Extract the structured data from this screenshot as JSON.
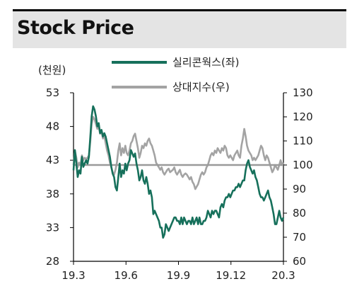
{
  "header": {
    "title": "Stock Price"
  },
  "colors": {
    "company": "#16705b",
    "relative": "#a3a3a3",
    "baseline": "#9a9a9a"
  },
  "chart_data": {
    "type": "line",
    "left_axis_unit": "(천원)",
    "x_tick_labels": [
      "19.3",
      "19.6",
      "19.9",
      "19.12",
      "20.3"
    ],
    "left_axis": {
      "ticks": [
        28,
        33,
        38,
        43,
        48,
        53
      ],
      "range": [
        28,
        53
      ]
    },
    "right_axis": {
      "ticks": [
        60,
        70,
        80,
        90,
        100,
        110,
        120,
        130
      ],
      "range": [
        60,
        130
      ]
    },
    "reference_line": {
      "axis": "right",
      "value": 100
    },
    "legend": [
      {
        "name": "실리콘웍스(좌)",
        "series": "company"
      },
      {
        "name": "상대지수(우)",
        "series": "relative"
      }
    ],
    "series": [
      {
        "name": "실리콘웍스(좌)",
        "key": "company",
        "axis": "left",
        "x": [
          0,
          2,
          4,
          6,
          8,
          10,
          12,
          14,
          16,
          18,
          20,
          22,
          24,
          26,
          28,
          30,
          32,
          34,
          36,
          38,
          40,
          42,
          44,
          46,
          48,
          50,
          52,
          54,
          56,
          58,
          60,
          62,
          64,
          66,
          68,
          70,
          72,
          74,
          76,
          78,
          80,
          82,
          84,
          86,
          88,
          90,
          92,
          94,
          96,
          98,
          100,
          102,
          104,
          106,
          108,
          110,
          112,
          114,
          116,
          118,
          120,
          122,
          124,
          126,
          128,
          130,
          132,
          134,
          136,
          138,
          140,
          142,
          144,
          146,
          148,
          150,
          152,
          154,
          156,
          158,
          160,
          162,
          164,
          166,
          168,
          170,
          172,
          174,
          176,
          178,
          180,
          182,
          184,
          186,
          188,
          190,
          192,
          194,
          196,
          198,
          200,
          202,
          204,
          206,
          208,
          210,
          212,
          214,
          216,
          218,
          220,
          222,
          224,
          226,
          228,
          230,
          232,
          234,
          236,
          238,
          240,
          242,
          244,
          246,
          248,
          250,
          252,
          254,
          256,
          258,
          260,
          262,
          264,
          266,
          268,
          270,
          272,
          274,
          276,
          278,
          280,
          282,
          284,
          286,
          288,
          290,
          292,
          294,
          296,
          298,
          300
        ],
        "values": [
          41.5,
          44.5,
          42.5,
          40.5,
          41.5,
          41.0,
          43.5,
          42.0,
          42.5,
          43.0,
          42.5,
          43.5,
          46.5,
          49.5,
          51.0,
          50.5,
          49.5,
          48.0,
          48.5,
          47.0,
          47.5,
          46.5,
          47.0,
          46.5,
          45.5,
          44.5,
          43.5,
          42.0,
          41.0,
          40.5,
          39.0,
          38.5,
          40.5,
          42.5,
          40.5,
          41.5,
          41.0,
          42.5,
          41.5,
          42.5,
          43.0,
          44.5,
          44.0,
          43.5,
          44.0,
          42.5,
          41.5,
          40.0,
          40.5,
          41.5,
          40.0,
          39.5,
          40.5,
          39.5,
          38.0,
          38.5,
          37.5,
          35.0,
          35.5,
          35.0,
          34.5,
          34.0,
          33.0,
          33.0,
          31.5,
          32.0,
          33.5,
          33.0,
          32.5,
          33.0,
          33.5,
          34.0,
          34.5,
          34.5,
          34.0,
          34.0,
          33.5,
          34.5,
          33.5,
          34.5,
          34.0,
          33.5,
          34.0,
          34.0,
          33.5,
          34.5,
          33.5,
          34.0,
          34.5,
          33.5,
          34.5,
          33.5,
          33.5,
          34.0,
          34.0,
          34.5,
          35.5,
          35.0,
          34.5,
          35.5,
          35.0,
          35.5,
          35.5,
          35.0,
          34.5,
          36.0,
          36.5,
          36.0,
          37.0,
          37.5,
          37.5,
          38.0,
          37.5,
          38.0,
          38.5,
          38.5,
          39.0,
          39.0,
          39.5,
          39.0,
          39.5,
          40.0,
          40.0,
          41.5,
          42.5,
          43.0,
          42.0,
          41.5,
          41.0,
          41.5,
          40.5,
          40.0,
          39.0,
          38.0,
          37.5,
          37.5,
          37.0,
          37.5,
          38.0,
          38.5,
          37.5,
          37.0,
          36.0,
          35.0,
          33.5,
          33.5,
          34.5,
          35.5,
          34.5,
          34.0,
          34.5
        ]
      },
      {
        "name": "상대지수(우)",
        "key": "relative",
        "axis": "right",
        "x": [
          0,
          2,
          4,
          6,
          8,
          10,
          12,
          14,
          16,
          18,
          20,
          22,
          24,
          26,
          28,
          30,
          32,
          34,
          36,
          38,
          40,
          42,
          44,
          46,
          48,
          50,
          52,
          54,
          56,
          58,
          60,
          62,
          64,
          66,
          68,
          70,
          72,
          74,
          76,
          78,
          80,
          82,
          84,
          86,
          88,
          90,
          92,
          94,
          96,
          98,
          100,
          102,
          104,
          106,
          108,
          110,
          112,
          114,
          116,
          118,
          120,
          122,
          124,
          126,
          128,
          130,
          132,
          134,
          136,
          138,
          140,
          142,
          144,
          146,
          148,
          150,
          152,
          154,
          156,
          158,
          160,
          162,
          164,
          166,
          168,
          170,
          172,
          174,
          176,
          178,
          180,
          182,
          184,
          186,
          188,
          190,
          192,
          194,
          196,
          198,
          200,
          202,
          204,
          206,
          208,
          210,
          212,
          214,
          216,
          218,
          220,
          222,
          224,
          226,
          228,
          230,
          232,
          234,
          236,
          238,
          240,
          242,
          244,
          246,
          248,
          250,
          252,
          254,
          256,
          258,
          260,
          262,
          264,
          266,
          268,
          270,
          272,
          274,
          276,
          278,
          280,
          282,
          284,
          286,
          288,
          290,
          292,
          294,
          296,
          298,
          300
        ],
        "values": [
          100.0,
          106.0,
          103.0,
          99.0,
          101.0,
          100.0,
          104.0,
          102.0,
          103.0,
          102.5,
          103.0,
          104.0,
          110.0,
          117.0,
          120.0,
          119.0,
          117.0,
          115.0,
          116.0,
          113.0,
          114.0,
          111.0,
          112.0,
          109.0,
          106.0,
          104.0,
          101.0,
          99.0,
          97.0,
          96.0,
          98.0,
          101.0,
          106.0,
          109.0,
          104.0,
          107.0,
          105.0,
          108.0,
          105.0,
          104.0,
          106.0,
          109.0,
          110.0,
          112.0,
          113.0,
          110.0,
          107.0,
          103.0,
          105.0,
          108.0,
          107.0,
          109.0,
          108.0,
          110.0,
          111.0,
          109.0,
          108.0,
          106.0,
          104.0,
          101.0,
          100.0,
          99.0,
          98.0,
          99.0,
          97.0,
          96.0,
          97.0,
          98.0,
          98.5,
          97.0,
          97.5,
          98.0,
          99.0,
          97.0,
          96.0,
          97.0,
          98.0,
          96.0,
          95.0,
          96.0,
          96.5,
          96.0,
          95.0,
          94.0,
          95.0,
          93.0,
          92.0,
          90.0,
          91.0,
          92.0,
          94.0,
          96.0,
          97.0,
          96.0,
          97.0,
          99.0,
          100.0,
          102.0,
          104.0,
          105.0,
          104.0,
          106.0,
          105.0,
          107.0,
          106.0,
          105.0,
          107.0,
          106.0,
          108.0,
          107.0,
          104.0,
          103.0,
          104.0,
          103.0,
          102.0,
          104.0,
          105.0,
          106.0,
          104.0,
          103.0,
          108.0,
          111.0,
          115.0,
          112.0,
          108.0,
          106.0,
          105.0,
          104.0,
          102.0,
          103.0,
          102.0,
          103.0,
          104.0,
          106.0,
          108.0,
          107.0,
          104.0,
          102.0,
          104.0,
          103.0,
          101.0,
          99.0,
          97.0,
          98.0,
          100.0,
          99.0,
          98.0,
          100.0,
          102.0,
          100.0,
          101.0
        ]
      }
    ]
  }
}
